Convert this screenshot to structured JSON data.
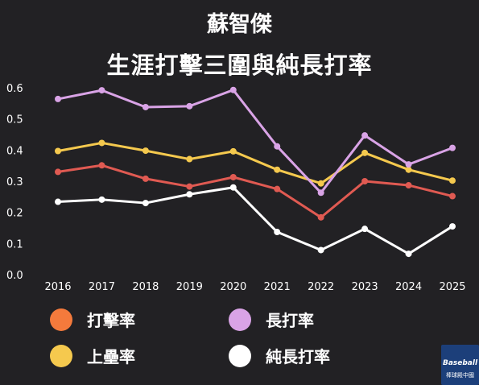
{
  "chart_data": {
    "type": "line",
    "title": "蘇智傑",
    "subtitle": "生涯打擊三圍與純長打率",
    "xlabel": "",
    "ylabel": "",
    "ylim": [
      0,
      0.6
    ],
    "yticks": [
      "0.0",
      "0.1",
      "0.2",
      "0.3",
      "0.4",
      "0.5",
      "0.6"
    ],
    "categories": [
      "2016",
      "2017",
      "2018",
      "2019",
      "2020",
      "2021",
      "2022",
      "2023",
      "2024",
      "2025"
    ],
    "grid": false,
    "legend_position": "bottom",
    "series": [
      {
        "name": "打擊率",
        "color": "#e05a52",
        "legend_color": "#f47a3c",
        "values": [
          0.33,
          0.351,
          0.308,
          0.283,
          0.313,
          0.275,
          0.184,
          0.3,
          0.287,
          0.252
        ]
      },
      {
        "name": "上壘率",
        "color": "#f5c94e",
        "legend_color": "#f5c94e",
        "values": [
          0.397,
          0.423,
          0.398,
          0.371,
          0.396,
          0.337,
          0.293,
          0.391,
          0.337,
          0.302
        ]
      },
      {
        "name": "長打率",
        "color": "#d9a3e6",
        "legend_color": "#d9a3e6",
        "values": [
          0.564,
          0.592,
          0.538,
          0.541,
          0.593,
          0.412,
          0.263,
          0.447,
          0.354,
          0.407
        ]
      },
      {
        "name": "純長打率",
        "color": "#ffffff",
        "legend_color": "#ffffff",
        "values": [
          0.234,
          0.241,
          0.23,
          0.258,
          0.28,
          0.137,
          0.079,
          0.147,
          0.067,
          0.155
        ]
      }
    ]
  },
  "logo": {
    "text": "Baseball",
    "sub": "棒球殿中國"
  }
}
